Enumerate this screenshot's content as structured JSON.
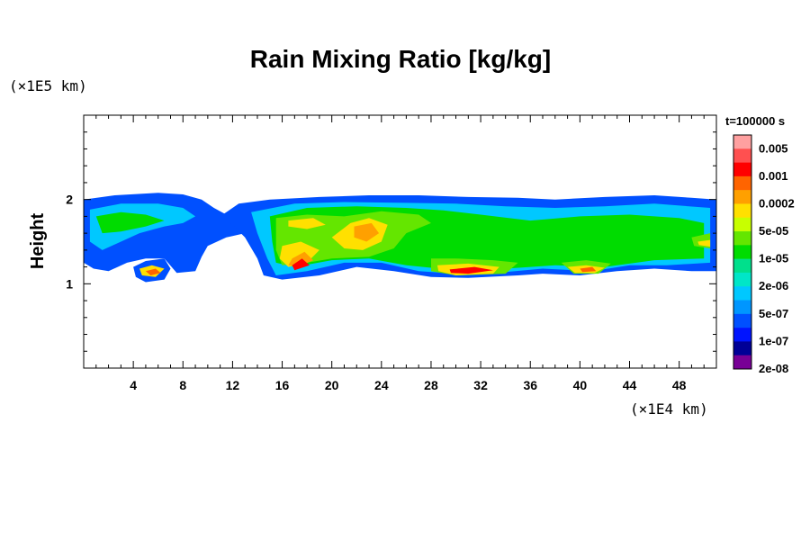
{
  "chart_data": {
    "type": "heatmap",
    "title": "Rain Mixing Ratio [kg/kg]",
    "ylabel": "Height",
    "xlabel": "",
    "x_unit": "(×1E4 km)",
    "y_unit": "(×1E5 km)",
    "time_label": "t=100000 s",
    "xlim": [
      0,
      51
    ],
    "ylim": [
      0,
      3
    ],
    "x_ticks": [
      "4",
      "8",
      "12",
      "16",
      "20",
      "24",
      "28",
      "32",
      "36",
      "40",
      "44",
      "48"
    ],
    "x_tick_values": [
      4,
      8,
      12,
      16,
      20,
      24,
      28,
      32,
      36,
      40,
      44,
      48
    ],
    "y_ticks": [
      "1",
      "2"
    ],
    "y_tick_values": [
      1,
      2
    ],
    "colorbar": {
      "colors": [
        "#ffa0a0",
        "#ff5050",
        "#ff0000",
        "#ff6400",
        "#ffa000",
        "#ffe000",
        "#c8ff00",
        "#64e600",
        "#00dc00",
        "#00e08c",
        "#00e6c8",
        "#00c8ff",
        "#0096ff",
        "#0050ff",
        "#0014ff",
        "#000096",
        "#780096"
      ],
      "labels": [
        "0.005",
        "0.001",
        "0.0002",
        "5e-05",
        "1e-05",
        "2e-06",
        "5e-07",
        "1e-07",
        "2e-08"
      ]
    },
    "regions": [
      {
        "level": 13,
        "points": [
          [
            0.0,
            2.0
          ],
          [
            2.5,
            2.05
          ],
          [
            6.0,
            2.08
          ],
          [
            8.0,
            2.06
          ],
          [
            9.5,
            2.0
          ],
          [
            10.5,
            1.9
          ],
          [
            11.5,
            1.82
          ],
          [
            13.0,
            1.78
          ],
          [
            14.0,
            1.7
          ],
          [
            13.0,
            1.6
          ],
          [
            11.5,
            1.55
          ],
          [
            10.0,
            1.45
          ],
          [
            9.5,
            1.32
          ],
          [
            9.0,
            1.15
          ],
          [
            7.5,
            1.13
          ],
          [
            6.5,
            1.3
          ],
          [
            5.0,
            1.3
          ],
          [
            3.5,
            1.25
          ],
          [
            2.0,
            1.15
          ],
          [
            0.8,
            1.18
          ],
          [
            0.0,
            1.25
          ]
        ]
      },
      {
        "level": 13,
        "points": [
          [
            12.5,
            1.95
          ],
          [
            15.0,
            2.0
          ],
          [
            19.0,
            2.03
          ],
          [
            23.0,
            2.05
          ],
          [
            27.0,
            2.05
          ],
          [
            31.0,
            2.03
          ],
          [
            35.0,
            2.02
          ],
          [
            38.0,
            2.0
          ],
          [
            42.0,
            2.03
          ],
          [
            46.0,
            2.05
          ],
          [
            49.0,
            2.02
          ],
          [
            51.0,
            2.0
          ],
          [
            51.0,
            1.15
          ],
          [
            49.0,
            1.15
          ],
          [
            46.0,
            1.18
          ],
          [
            43.0,
            1.15
          ],
          [
            40.0,
            1.1
          ],
          [
            37.0,
            1.12
          ],
          [
            35.0,
            1.1
          ],
          [
            31.0,
            1.07
          ],
          [
            28.0,
            1.08
          ],
          [
            25.0,
            1.15
          ],
          [
            22.0,
            1.2
          ],
          [
            19.0,
            1.1
          ],
          [
            16.0,
            1.05
          ],
          [
            14.5,
            1.1
          ],
          [
            14.0,
            1.3
          ],
          [
            13.0,
            1.55
          ],
          [
            12.0,
            1.7
          ],
          [
            11.0,
            1.8
          ]
        ]
      },
      {
        "level": 13,
        "points": [
          [
            4.0,
            1.2
          ],
          [
            5.0,
            1.27
          ],
          [
            6.5,
            1.3
          ],
          [
            7.0,
            1.18
          ],
          [
            6.5,
            1.05
          ],
          [
            5.0,
            1.02
          ],
          [
            4.2,
            1.08
          ]
        ]
      },
      {
        "level": 11,
        "points": [
          [
            0.5,
            1.88
          ],
          [
            3.0,
            1.95
          ],
          [
            6.0,
            1.95
          ],
          [
            8.0,
            1.9
          ],
          [
            9.0,
            1.8
          ],
          [
            8.0,
            1.72
          ],
          [
            6.5,
            1.68
          ],
          [
            4.5,
            1.6
          ],
          [
            3.0,
            1.5
          ],
          [
            1.5,
            1.4
          ],
          [
            0.5,
            1.5
          ]
        ]
      },
      {
        "level": 11,
        "points": [
          [
            13.5,
            1.85
          ],
          [
            17.0,
            1.95
          ],
          [
            21.0,
            1.97
          ],
          [
            26.0,
            1.96
          ],
          [
            30.0,
            1.95
          ],
          [
            34.0,
            1.92
          ],
          [
            38.0,
            1.9
          ],
          [
            42.0,
            1.92
          ],
          [
            46.0,
            1.95
          ],
          [
            50.5,
            1.9
          ],
          [
            50.5,
            1.25
          ],
          [
            47.0,
            1.22
          ],
          [
            44.0,
            1.22
          ],
          [
            41.0,
            1.15
          ],
          [
            37.0,
            1.18
          ],
          [
            34.0,
            1.14
          ],
          [
            30.0,
            1.12
          ],
          [
            27.0,
            1.15
          ],
          [
            24.0,
            1.25
          ],
          [
            21.0,
            1.25
          ],
          [
            18.0,
            1.15
          ],
          [
            15.5,
            1.1
          ],
          [
            14.8,
            1.3
          ],
          [
            14.0,
            1.6
          ]
        ]
      },
      {
        "level": 8,
        "points": [
          [
            15.0,
            1.8
          ],
          [
            18.0,
            1.9
          ],
          [
            22.0,
            1.92
          ],
          [
            26.0,
            1.9
          ],
          [
            29.0,
            1.87
          ],
          [
            32.0,
            1.82
          ],
          [
            36.0,
            1.75
          ],
          [
            40.0,
            1.8
          ],
          [
            44.0,
            1.82
          ],
          [
            48.0,
            1.78
          ],
          [
            50.0,
            1.72
          ],
          [
            50.0,
            1.3
          ],
          [
            46.0,
            1.28
          ],
          [
            42.0,
            1.2
          ],
          [
            38.0,
            1.22
          ],
          [
            34.0,
            1.18
          ],
          [
            30.0,
            1.16
          ],
          [
            26.0,
            1.22
          ],
          [
            23.0,
            1.3
          ],
          [
            20.0,
            1.28
          ],
          [
            17.0,
            1.2
          ],
          [
            15.5,
            1.25
          ],
          [
            15.2,
            1.5
          ]
        ]
      },
      {
        "level": 8,
        "points": [
          [
            1.0,
            1.8
          ],
          [
            3.0,
            1.85
          ],
          [
            5.0,
            1.82
          ],
          [
            6.5,
            1.75
          ],
          [
            5.0,
            1.68
          ],
          [
            3.0,
            1.62
          ],
          [
            1.5,
            1.6
          ]
        ]
      },
      {
        "level": 7,
        "points": [
          [
            15.5,
            1.78
          ],
          [
            18.0,
            1.82
          ],
          [
            21.0,
            1.8
          ],
          [
            24.0,
            1.86
          ],
          [
            27.0,
            1.82
          ],
          [
            28.0,
            1.72
          ],
          [
            26.0,
            1.6
          ],
          [
            25.0,
            1.42
          ],
          [
            23.0,
            1.32
          ],
          [
            20.0,
            1.3
          ],
          [
            18.0,
            1.25
          ],
          [
            16.0,
            1.22
          ],
          [
            15.5,
            1.4
          ]
        ]
      },
      {
        "level": 7,
        "points": [
          [
            28.0,
            1.3
          ],
          [
            30.0,
            1.3
          ],
          [
            33.0,
            1.28
          ],
          [
            35.0,
            1.25
          ],
          [
            34.0,
            1.12
          ],
          [
            30.0,
            1.1
          ],
          [
            28.0,
            1.15
          ]
        ]
      },
      {
        "level": 7,
        "points": [
          [
            38.5,
            1.25
          ],
          [
            40.5,
            1.28
          ],
          [
            42.5,
            1.24
          ],
          [
            41.5,
            1.12
          ],
          [
            39.5,
            1.12
          ]
        ]
      },
      {
        "level": 7,
        "points": [
          [
            49.0,
            1.55
          ],
          [
            50.5,
            1.6
          ],
          [
            50.5,
            1.42
          ],
          [
            49.2,
            1.45
          ]
        ]
      },
      {
        "level": 5,
        "points": [
          [
            16.5,
            1.75
          ],
          [
            18.5,
            1.78
          ],
          [
            19.5,
            1.7
          ],
          [
            18.0,
            1.65
          ],
          [
            16.5,
            1.68
          ]
        ]
      },
      {
        "level": 5,
        "points": [
          [
            20.0,
            1.55
          ],
          [
            21.5,
            1.72
          ],
          [
            23.0,
            1.78
          ],
          [
            24.5,
            1.7
          ],
          [
            24.0,
            1.5
          ],
          [
            22.5,
            1.4
          ],
          [
            21.0,
            1.42
          ]
        ]
      },
      {
        "level": 5,
        "points": [
          [
            16.0,
            1.45
          ],
          [
            17.5,
            1.5
          ],
          [
            19.0,
            1.4
          ],
          [
            18.0,
            1.25
          ],
          [
            16.5,
            1.2
          ],
          [
            15.8,
            1.3
          ]
        ]
      },
      {
        "level": 5,
        "points": [
          [
            28.5,
            1.22
          ],
          [
            31.0,
            1.24
          ],
          [
            33.5,
            1.2
          ],
          [
            33.0,
            1.12
          ],
          [
            30.0,
            1.1
          ],
          [
            28.6,
            1.15
          ]
        ]
      },
      {
        "level": 5,
        "points": [
          [
            39.0,
            1.2
          ],
          [
            40.5,
            1.22
          ],
          [
            42.0,
            1.19
          ],
          [
            41.2,
            1.13
          ],
          [
            39.6,
            1.13
          ]
        ]
      },
      {
        "level": 5,
        "points": [
          [
            49.5,
            1.5
          ],
          [
            50.5,
            1.52
          ],
          [
            50.5,
            1.44
          ],
          [
            49.6,
            1.46
          ]
        ]
      },
      {
        "level": 4,
        "points": [
          [
            21.8,
            1.68
          ],
          [
            23.2,
            1.72
          ],
          [
            23.8,
            1.6
          ],
          [
            22.8,
            1.5
          ],
          [
            21.8,
            1.55
          ]
        ]
      },
      {
        "level": 4,
        "points": [
          [
            16.8,
            1.3
          ],
          [
            17.8,
            1.38
          ],
          [
            18.5,
            1.28
          ],
          [
            17.3,
            1.2
          ],
          [
            16.5,
            1.22
          ]
        ]
      },
      {
        "level": 2,
        "points": [
          [
            16.8,
            1.22
          ],
          [
            17.6,
            1.3
          ],
          [
            18.2,
            1.22
          ],
          [
            17.0,
            1.16
          ]
        ]
      },
      {
        "level": 2,
        "points": [
          [
            29.5,
            1.17
          ],
          [
            31.5,
            1.2
          ],
          [
            33.0,
            1.16
          ],
          [
            31.0,
            1.12
          ],
          [
            29.6,
            1.13
          ]
        ]
      },
      {
        "level": 3,
        "points": [
          [
            40.0,
            1.18
          ],
          [
            41.0,
            1.2
          ],
          [
            41.3,
            1.15
          ],
          [
            40.2,
            1.14
          ]
        ]
      },
      {
        "level": 5,
        "points": [
          [
            4.5,
            1.18
          ],
          [
            5.5,
            1.22
          ],
          [
            6.5,
            1.18
          ],
          [
            5.8,
            1.08
          ],
          [
            4.7,
            1.1
          ]
        ]
      },
      {
        "level": 3,
        "points": [
          [
            5.0,
            1.15
          ],
          [
            5.8,
            1.18
          ],
          [
            6.2,
            1.13
          ],
          [
            5.4,
            1.1
          ]
        ]
      }
    ]
  }
}
